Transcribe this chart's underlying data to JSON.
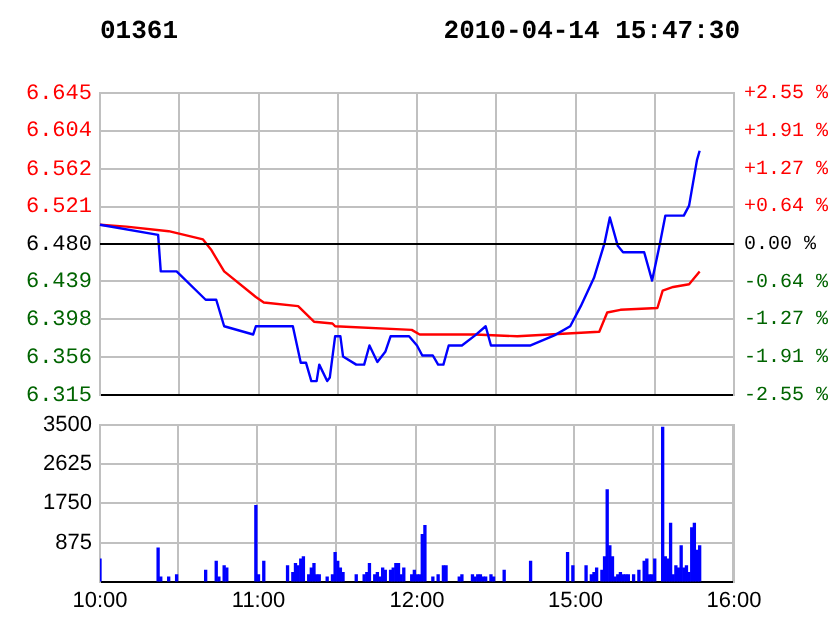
{
  "chart_data": [
    {
      "type": "line",
      "title": "01361",
      "annotations": [
        "2010-04-14 15:47:30"
      ],
      "categories": [
        null,
        null,
        null,
        null,
        null,
        null,
        null,
        null,
        null,
        null,
        null,
        null,
        null,
        null,
        null,
        null,
        null,
        null,
        null,
        null,
        null,
        null,
        null,
        null,
        null,
        null,
        null,
        null,
        null,
        null,
        null,
        null,
        null,
        null,
        null,
        null,
        null,
        null,
        null,
        null,
        null,
        null,
        null,
        null,
        null,
        null,
        null,
        null,
        null,
        null,
        null,
        null,
        null,
        null,
        null,
        null,
        null,
        null,
        null,
        null,
        null,
        null,
        null,
        null,
        null,
        null,
        null,
        null,
        null,
        null,
        null,
        null,
        null,
        null,
        null,
        null,
        null,
        null,
        null,
        null,
        null,
        null,
        null,
        null,
        null,
        null,
        null,
        null,
        null,
        null,
        null,
        null,
        null,
        null,
        null,
        null,
        null,
        null,
        null,
        null,
        null,
        null,
        null,
        null,
        null,
        null,
        null,
        null,
        null,
        null,
        null,
        null,
        null,
        null,
        null,
        null,
        null,
        null,
        null,
        null,
        null,
        null,
        null,
        null,
        null,
        null,
        null,
        null,
        null,
        null,
        null,
        null,
        null,
        null,
        null,
        null,
        null,
        null,
        null,
        null,
        null,
        null,
        null,
        null,
        null,
        null,
        null,
        null,
        null,
        null,
        null,
        null,
        null,
        null,
        null,
        null,
        null,
        null,
        null,
        null,
        null,
        null,
        null,
        null,
        null,
        null,
        null,
        null,
        null,
        null,
        null,
        null,
        null,
        null,
        null,
        null,
        null,
        null,
        null,
        null,
        null,
        null,
        null,
        null,
        null,
        null,
        null,
        null,
        null,
        null,
        null,
        null,
        null,
        null,
        null,
        null,
        null,
        null,
        null,
        null,
        null,
        null,
        null,
        null,
        null,
        null,
        null,
        null,
        null,
        null,
        null,
        null,
        null,
        null,
        null,
        null,
        null,
        null,
        null,
        null,
        null,
        null,
        null,
        null,
        null,
        null,
        null,
        null,
        null,
        null,
        null,
        null,
        null,
        null,
        null,
        null,
        null,
        null,
        null,
        null,
        null
      ],
      "ylim": [
        6.315,
        6.645
      ],
      "yticks": [
        6.315,
        6.356,
        6.398,
        6.439,
        {
          "value": 6.48,
          "label": "6.480"
        },
        6.521,
        6.562,
        6.604,
        6.645
      ],
      "y2lim": [
        -2.55,
        2.55
      ],
      "y2ticks": [
        {
          "value": -2.55,
          "label": "-2.55 %"
        },
        {
          "value": -1.91,
          "label": "-1.91 %"
        },
        {
          "value": -1.27,
          "label": "-1.27 %"
        },
        {
          "value": -0.64,
          "label": "-0.64 %"
        },
        {
          "value": 0,
          "label": "0.00 %"
        },
        {
          "value": 0.64,
          "label": "+0.64 %"
        },
        {
          "value": 1.27,
          "label": "+1.27 %"
        },
        {
          "value": 1.91,
          "label": "+1.91 %"
        },
        {
          "value": 2.55,
          "label": "+2.55 %"
        }
      ],
      "tick_labels": "y",
      "grid": true,
      "legend": false,
      "marker": "none",
      "line_style": "solid",
      "ref_lines": [
        {
          "axis": "y",
          "value": 6.48,
          "color": "#000000"
        }
      ],
      "series": [
        {
          "color": "#0000ff",
          "values": [
            6.501,
            null,
            null,
            null,
            null,
            null,
            null,
            null,
            null,
            null,
            null,
            null,
            null,
            null,
            null,
            null,
            null,
            null,
            null,
            null,
            null,
            null,
            6.49,
            6.45,
            null,
            null,
            null,
            null,
            null,
            6.45,
            null,
            null,
            null,
            null,
            null,
            null,
            null,
            null,
            null,
            null,
            6.419,
            null,
            null,
            null,
            6.419,
            null,
            null,
            6.39,
            null,
            null,
            null,
            null,
            null,
            null,
            null,
            null,
            null,
            null,
            6.381,
            6.39,
            null,
            null,
            null,
            null,
            null,
            null,
            null,
            null,
            null,
            null,
            null,
            null,
            null,
            6.39,
            null,
            null,
            6.35,
            null,
            6.35,
            null,
            6.33,
            null,
            6.33,
            6.348,
            null,
            null,
            6.33,
            6.334,
            null,
            6.379,
            null,
            6.379,
            6.357,
            null,
            null,
            null,
            null,
            6.348,
            null,
            null,
            6.348,
            null,
            6.369,
            null,
            null,
            6.351,
            null,
            null,
            6.362,
            null,
            6.379,
            null,
            null,
            null,
            null,
            null,
            null,
            6.379,
            null,
            null,
            6.369,
            null,
            6.358,
            null,
            null,
            null,
            6.358,
            null,
            6.348,
            null,
            6.348,
            null,
            6.369,
            null,
            null,
            null,
            null,
            6.369,
            null,
            null,
            null,
            null,
            6.38,
            null,
            null,
            null,
            6.39,
            null,
            6.369,
            null,
            null,
            null,
            null,
            null,
            null,
            null,
            null,
            null,
            null,
            null,
            null,
            null,
            null,
            6.369,
            null,
            null,
            null,
            null,
            null,
            null,
            null,
            null,
            6.38,
            null,
            null,
            null,
            null,
            null,
            6.39,
            null,
            null,
            null,
            6.412,
            null,
            null,
            null,
            null,
            6.443,
            null,
            null,
            null,
            6.481,
            null,
            6.509,
            null,
            null,
            6.478,
            null,
            6.471,
            null,
            null,
            null,
            null,
            null,
            null,
            null,
            6.471,
            null,
            null,
            6.44,
            null,
            null,
            6.481,
            null,
            6.511,
            null,
            null,
            null,
            null,
            null,
            null,
            6.511,
            null,
            6.522,
            null,
            null,
            6.572,
            6.582,
            null,
            null,
            null,
            null,
            null,
            null,
            null,
            null,
            null,
            null,
            null,
            null,
            null
          ]
        },
        {
          "color": "#ff0000",
          "values": [
            6.501,
            null,
            null,
            null,
            null,
            null,
            null,
            null,
            null,
            null,
            6.499,
            null,
            null,
            null,
            null,
            null,
            null,
            null,
            null,
            null,
            null,
            null,
            null,
            null,
            null,
            null,
            6.494,
            null,
            null,
            null,
            null,
            null,
            null,
            null,
            null,
            null,
            null,
            null,
            null,
            6.485,
            null,
            null,
            6.474,
            null,
            null,
            null,
            null,
            6.45,
            null,
            null,
            null,
            null,
            null,
            null,
            null,
            null,
            null,
            null,
            null,
            6.422,
            null,
            null,
            6.416,
            null,
            null,
            null,
            null,
            null,
            null,
            null,
            null,
            null,
            null,
            null,
            null,
            6.412,
            null,
            null,
            null,
            null,
            null,
            6.395,
            null,
            null,
            null,
            null,
            null,
            null,
            6.393,
            6.39,
            null,
            null,
            null,
            null,
            null,
            null,
            null,
            null,
            null,
            null,
            null,
            null,
            null,
            null,
            null,
            null,
            null,
            null,
            null,
            null,
            null,
            null,
            null,
            null,
            null,
            null,
            null,
            null,
            6.386,
            null,
            null,
            6.381,
            null,
            null,
            null,
            null,
            null,
            null,
            null,
            null,
            null,
            null,
            null,
            null,
            null,
            null,
            null,
            null,
            null,
            null,
            null,
            null,
            6.381,
            null,
            null,
            null,
            null,
            null,
            null,
            null,
            null,
            null,
            null,
            null,
            null,
            null,
            null,
            null,
            6.379,
            null,
            null,
            null,
            null,
            null,
            null,
            null,
            null,
            null,
            null,
            null,
            null,
            null,
            null,
            null,
            null,
            null,
            null,
            null,
            null,
            null,
            null,
            null,
            null,
            null,
            null,
            null,
            null,
            null,
            null,
            6.384,
            null,
            null,
            6.405,
            null,
            null,
            null,
            null,
            6.408,
            null,
            null,
            null,
            null,
            null,
            null,
            null,
            null,
            null,
            null,
            null,
            null,
            null,
            6.41,
            null,
            6.429,
            null,
            null,
            null,
            6.433,
            null,
            null,
            null,
            null,
            null,
            6.436,
            null,
            null,
            null,
            6.45,
            null,
            null,
            null,
            null,
            null,
            null,
            null,
            null,
            null,
            null,
            null,
            null,
            null
          ]
        }
      ]
    },
    {
      "type": "bar",
      "categories": [
        "10:00",
        null,
        null,
        null,
        null,
        null,
        null,
        null,
        null,
        null,
        null,
        null,
        null,
        null,
        null,
        null,
        null,
        null,
        null,
        null,
        null,
        null,
        null,
        null,
        null,
        null,
        null,
        null,
        null,
        null,
        null,
        null,
        null,
        null,
        null,
        null,
        null,
        null,
        null,
        null,
        null,
        null,
        null,
        null,
        null,
        null,
        null,
        null,
        null,
        null,
        null,
        null,
        null,
        null,
        null,
        null,
        null,
        null,
        null,
        null,
        "11:00",
        null,
        null,
        null,
        null,
        null,
        null,
        null,
        null,
        null,
        null,
        null,
        null,
        null,
        null,
        null,
        null,
        null,
        null,
        null,
        null,
        null,
        null,
        null,
        null,
        null,
        null,
        null,
        null,
        null,
        null,
        null,
        null,
        null,
        null,
        null,
        null,
        null,
        null,
        null,
        null,
        null,
        null,
        null,
        null,
        null,
        null,
        null,
        null,
        null,
        null,
        null,
        null,
        null,
        null,
        null,
        null,
        null,
        null,
        null,
        "12:00",
        null,
        null,
        null,
        null,
        null,
        null,
        null,
        null,
        null,
        null,
        null,
        null,
        null,
        null,
        null,
        null,
        null,
        null,
        null,
        null,
        null,
        null,
        null,
        null,
        null,
        null,
        null,
        null,
        null,
        null,
        null,
        null,
        null,
        null,
        null,
        null,
        null,
        null,
        null,
        null,
        null,
        null,
        null,
        null,
        null,
        null,
        null,
        null,
        null,
        null,
        null,
        null,
        null,
        null,
        null,
        null,
        null,
        null,
        null,
        "15:00",
        null,
        null,
        null,
        null,
        null,
        null,
        null,
        null,
        null,
        null,
        null,
        null,
        null,
        null,
        null,
        null,
        null,
        null,
        null,
        null,
        null,
        null,
        null,
        null,
        null,
        null,
        null,
        null,
        null,
        null,
        null,
        null,
        null,
        null,
        null,
        null,
        null,
        null,
        null,
        null,
        null,
        null,
        null,
        null,
        null,
        null,
        null,
        null,
        null,
        null,
        null,
        null,
        null,
        null,
        null,
        null,
        null,
        null,
        null,
        "16:00"
      ],
      "ylim": [
        0,
        3500
      ],
      "yticks": [
        875,
        1750,
        2625,
        3500
      ],
      "grid": true,
      "legend": false,
      "series": [
        {
          "color": "#0000ff",
          "values": [
            500,
            null,
            null,
            null,
            null,
            null,
            null,
            null,
            null,
            null,
            null,
            null,
            null,
            null,
            null,
            null,
            null,
            null,
            null,
            null,
            null,
            null,
            750,
            100,
            null,
            null,
            100,
            null,
            null,
            150,
            null,
            null,
            null,
            null,
            null,
            null,
            null,
            null,
            null,
            null,
            250,
            null,
            null,
            null,
            450,
            100,
            null,
            350,
            300,
            null,
            null,
            null,
            null,
            null,
            null,
            null,
            null,
            null,
            null,
            1700,
            150,
            null,
            450,
            null,
            null,
            null,
            null,
            null,
            null,
            null,
            null,
            350,
            null,
            200,
            400,
            350,
            500,
            550,
            null,
            150,
            300,
            400,
            150,
            150,
            null,
            null,
            100,
            null,
            150,
            650,
            450,
            300,
            200,
            null,
            null,
            null,
            null,
            150,
            null,
            null,
            150,
            200,
            400,
            null,
            150,
            200,
            100,
            300,
            250,
            null,
            250,
            300,
            400,
            400,
            150,
            300,
            null,
            null,
            150,
            250,
            150,
            150,
            1050,
            1250,
            null,
            null,
            100,
            null,
            150,
            null,
            350,
            350,
            null,
            null,
            null,
            null,
            100,
            150,
            null,
            null,
            null,
            150,
            100,
            150,
            150,
            100,
            100,
            null,
            150,
            100,
            null,
            null,
            null,
            250,
            null,
            null,
            null,
            null,
            null,
            null,
            null,
            null,
            null,
            450,
            null,
            null,
            null,
            null,
            null,
            null,
            null,
            null,
            null,
            null,
            null,
            null,
            null,
            650,
            null,
            350,
            null,
            null,
            null,
            null,
            350,
            null,
            150,
            200,
            300,
            null,
            250,
            550,
            2050,
            800,
            550,
            100,
            150,
            200,
            150,
            150,
            150,
            null,
            150,
            null,
            250,
            null,
            450,
            500,
            150,
            150,
            500,
            null,
            null,
            3450,
            550,
            500,
            1300,
            150,
            350,
            300,
            800,
            300,
            350,
            200,
            1200,
            1300,
            700,
            800,
            null,
            null,
            null,
            null,
            null,
            null,
            null,
            null,
            null,
            null,
            null,
            null,
            null
          ]
        }
      ]
    }
  ]
}
